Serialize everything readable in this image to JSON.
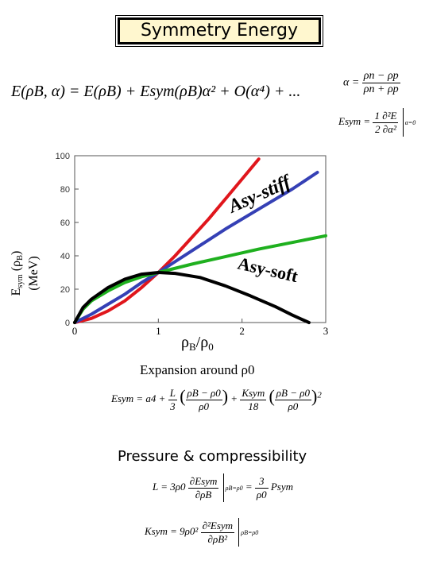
{
  "title": "Symmetry Energy",
  "equations": {
    "main": "E(ρB, α) = E(ρB) + Esym(ρB)α² + O(α⁴) + ...",
    "alpha_lhs": "α =",
    "alpha_num": "ρn − ρp",
    "alpha_den": "ρn + ρp",
    "esym_lhs": "Esym =",
    "esym_num": "1 ∂²E",
    "esym_den": "2 ∂α²",
    "esym_sub": "α=0"
  },
  "expansion_label": "Expansion around ρ0",
  "expansion_formula": {
    "lhs": "Esym = a4 +",
    "t1_num": "L",
    "t1_den": "3",
    "t1_paren_num": "ρB − ρ0",
    "t1_paren_den": "ρ0",
    "plus": "+",
    "t2_num": "Ksym",
    "t2_den": "18",
    "t2_paren_num": "ρB − ρ0",
    "t2_paren_den": "ρ0",
    "t2_power": "2"
  },
  "pressure_label": "Pressure & compressibility",
  "formula_L": {
    "lhs": "L = 3ρ0",
    "num": "∂Esym",
    "den": "∂ρB",
    "eval": "ρB=ρ0",
    "eq": "=",
    "rhs_num": "3",
    "rhs_den": "ρ0",
    "rhs_tail": "Psym"
  },
  "formula_K": {
    "lhs": "Ksym = 9ρ0²",
    "num": "∂²Esym",
    "den": "∂ρB²",
    "eval": "ρB=ρ0"
  },
  "chart_data": {
    "type": "line",
    "xlabel": "ρB/ρ0",
    "ylabel": "Esym (ρB) (MeV)",
    "xlim": [
      0,
      3
    ],
    "ylim": [
      0,
      100
    ],
    "xticks": [
      0,
      1,
      2,
      3
    ],
    "yticks": [
      0,
      20,
      40,
      60,
      80,
      100
    ],
    "grid": false,
    "annotations": [
      "Asy-stiff",
      "Asy-soft"
    ],
    "series": [
      {
        "color": "#e0161c",
        "x": [
          0,
          0.2,
          0.4,
          0.6,
          0.8,
          1.0,
          1.2,
          1.4,
          1.6,
          1.8,
          2.0,
          2.2
        ],
        "y": [
          0,
          2.5,
          7,
          13,
          21,
          30,
          40,
          51,
          62,
          74,
          86,
          98
        ]
      },
      {
        "color": "#3540b5",
        "x": [
          0,
          0.2,
          0.4,
          0.6,
          0.8,
          1.0,
          1.4,
          1.8,
          2.2,
          2.6,
          2.9
        ],
        "y": [
          0,
          5,
          11,
          17,
          24,
          30,
          43,
          56,
          68,
          80,
          90
        ]
      },
      {
        "color": "#1fb01f",
        "x": [
          0,
          0.1,
          0.2,
          0.4,
          0.6,
          0.8,
          1.0,
          1.4,
          1.8,
          2.2,
          2.6,
          3.0
        ],
        "y": [
          0,
          8,
          13,
          19,
          24,
          27.5,
          30,
          35,
          39.5,
          44,
          48,
          52
        ]
      },
      {
        "color": "#000000",
        "x": [
          0,
          0.1,
          0.2,
          0.4,
          0.6,
          0.8,
          1.0,
          1.2,
          1.5,
          1.8,
          2.1,
          2.4,
          2.6,
          2.8
        ],
        "y": [
          0,
          9,
          14,
          21,
          26,
          29,
          30,
          29.5,
          27,
          22,
          16,
          9.5,
          4.5,
          0
        ]
      }
    ]
  }
}
